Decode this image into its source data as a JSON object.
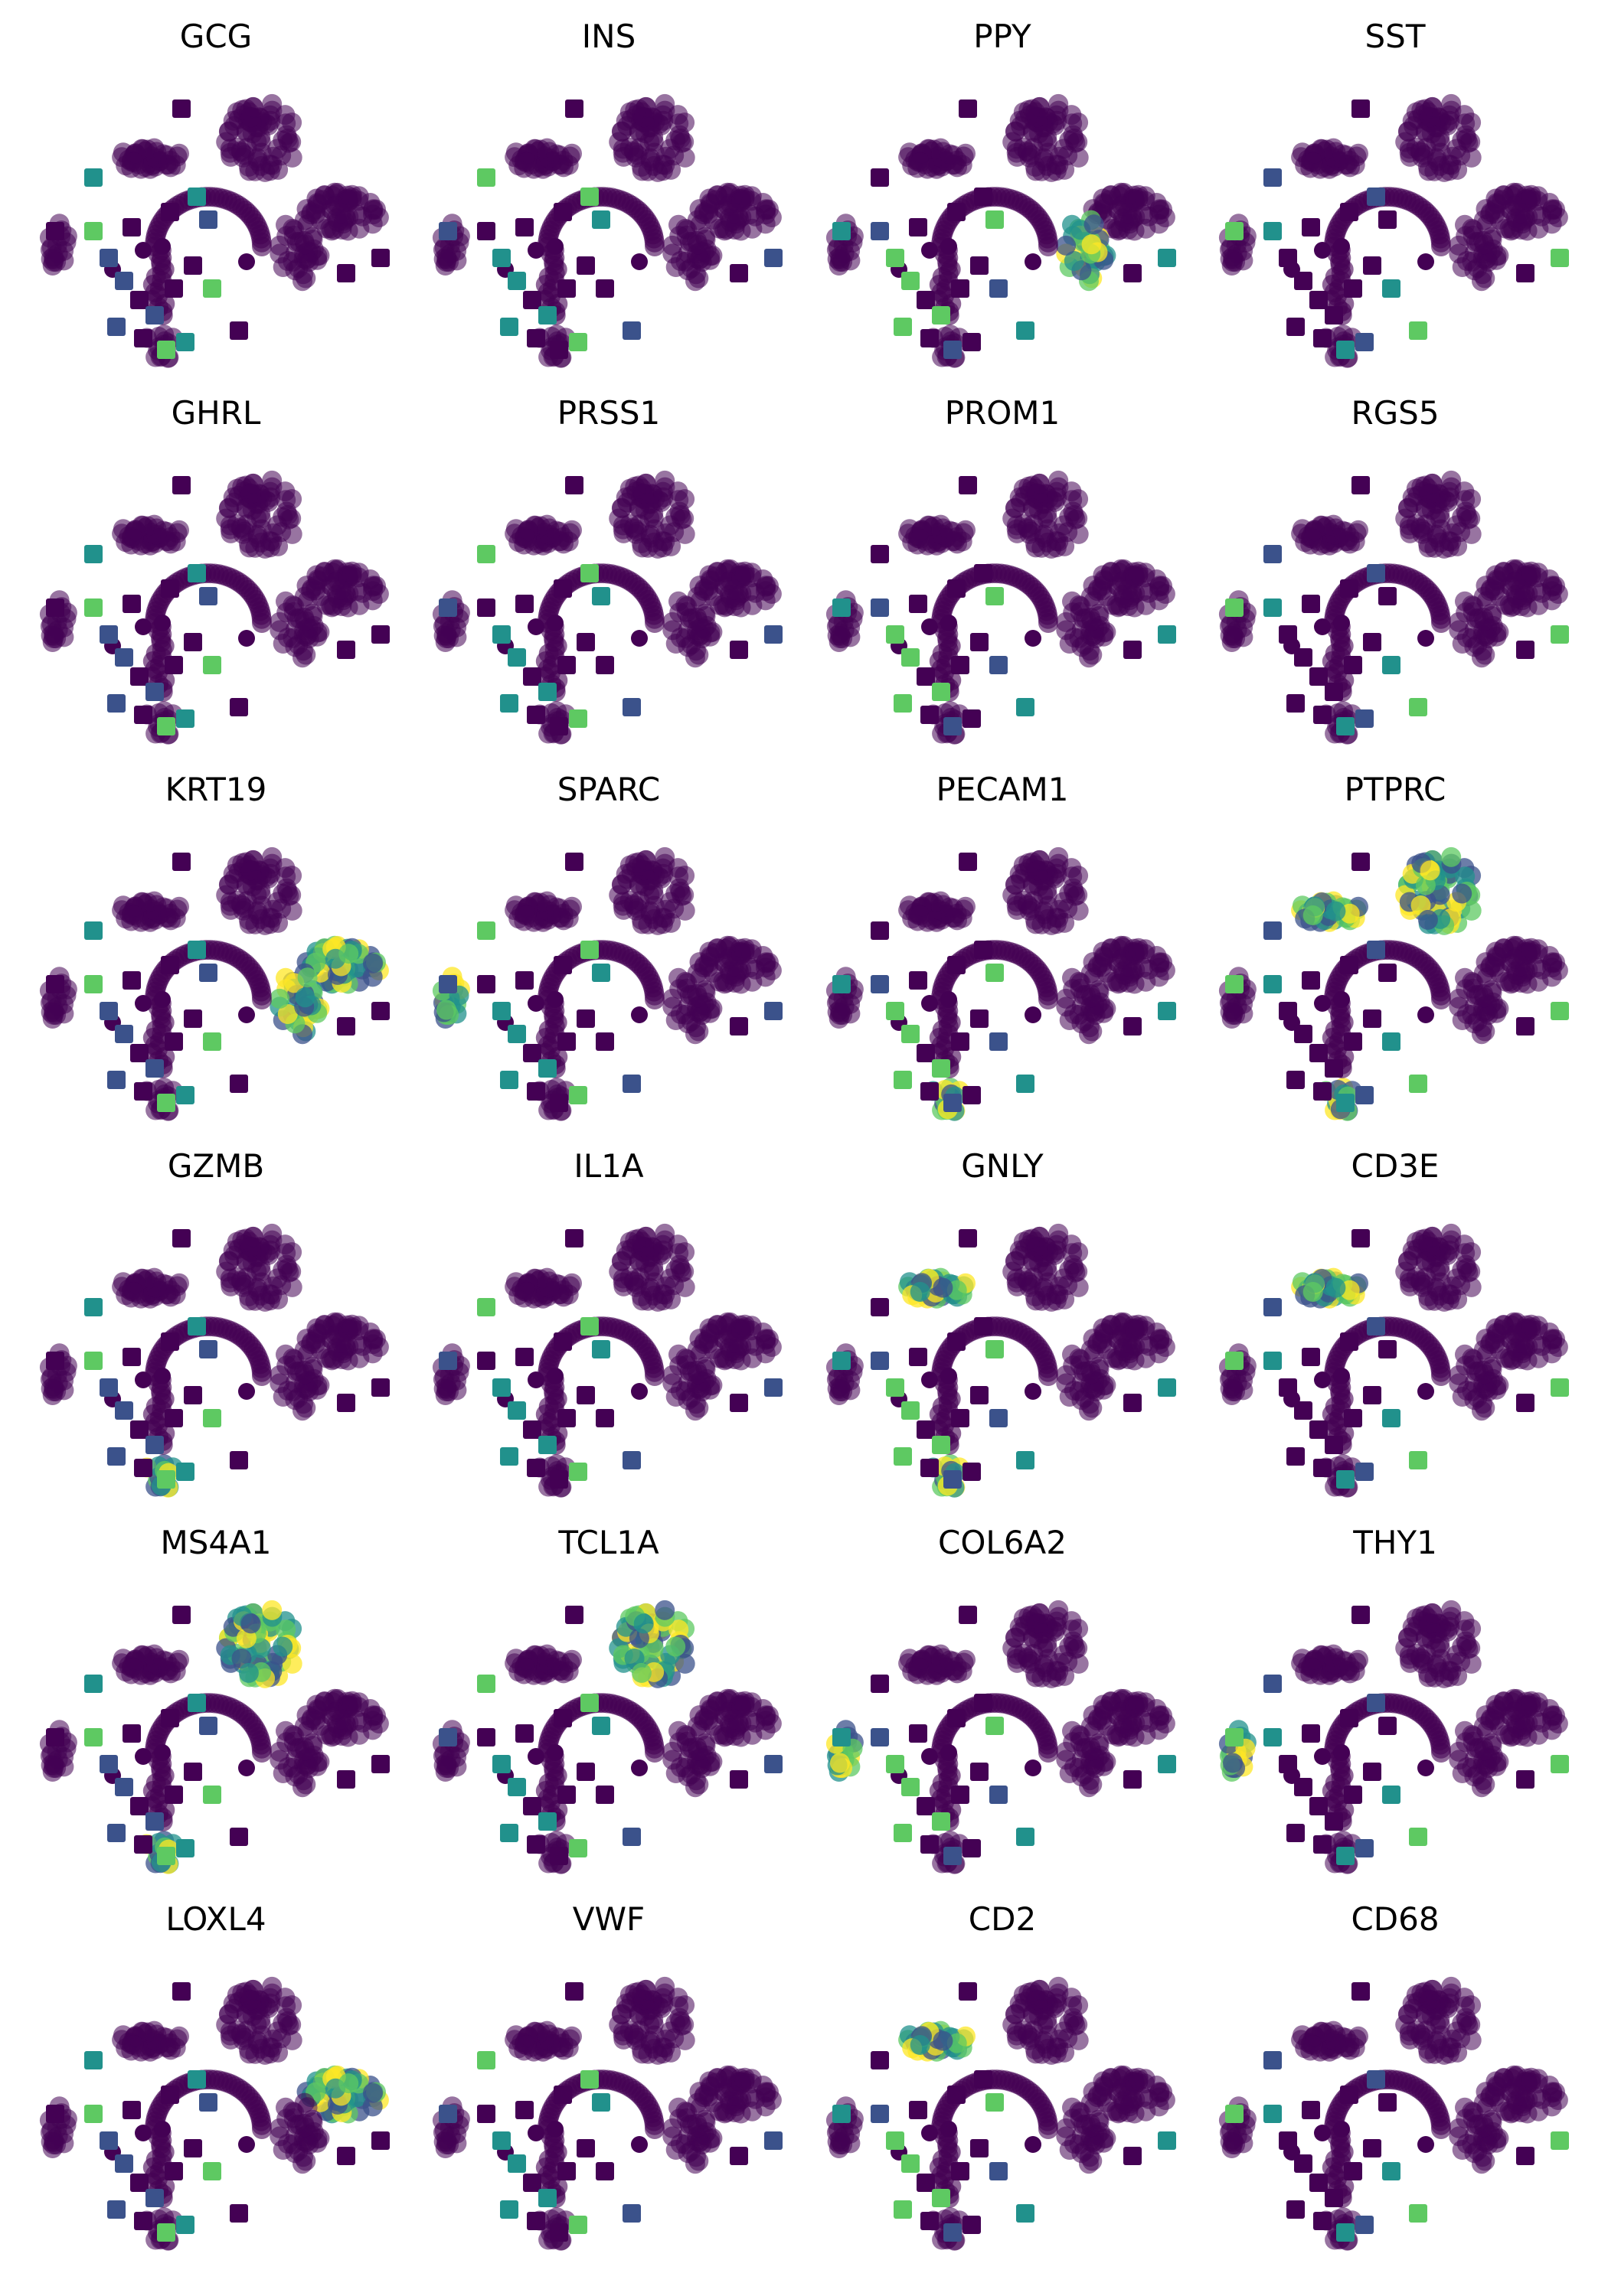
{
  "chart_data": {
    "type": "scatter",
    "layout": {
      "rows": 6,
      "cols": 4
    },
    "grid": false,
    "axes_visible": false,
    "colormap": [
      "#440154",
      "#3b528b",
      "#21918c",
      "#5ec962",
      "#fde725"
    ],
    "colormap_name": "viridis",
    "panels": [
      {
        "title": "GCG",
        "highlight": []
      },
      {
        "title": "INS",
        "highlight": []
      },
      {
        "title": "PPY",
        "highlight": [
          "ductal_band"
        ]
      },
      {
        "title": "SST",
        "highlight": []
      },
      {
        "title": "GHRL",
        "highlight": []
      },
      {
        "title": "PRSS1",
        "highlight": []
      },
      {
        "title": "PROM1",
        "highlight": []
      },
      {
        "title": "RGS5",
        "highlight": []
      },
      {
        "title": "KRT19",
        "highlight": [
          "right_blob",
          "ductal_band"
        ]
      },
      {
        "title": "SPARC",
        "highlight": [
          "left_arc"
        ]
      },
      {
        "title": "PECAM1",
        "highlight": [
          "bottom_group"
        ]
      },
      {
        "title": "PTPRC",
        "highlight": [
          "top_blob",
          "left_wing",
          "bottom_group"
        ]
      },
      {
        "title": "GZMB",
        "highlight": [
          "bottom_group"
        ]
      },
      {
        "title": "IL1A",
        "highlight": []
      },
      {
        "title": "GNLY",
        "highlight": [
          "left_wing",
          "bottom_group"
        ]
      },
      {
        "title": "CD3E",
        "highlight": [
          "left_wing"
        ]
      },
      {
        "title": "MS4A1",
        "highlight": [
          "top_blob",
          "bottom_group"
        ]
      },
      {
        "title": "TCL1A",
        "highlight": [
          "top_blob"
        ]
      },
      {
        "title": "COL6A2",
        "highlight": [
          "left_arc"
        ]
      },
      {
        "title": "THY1",
        "highlight": [
          "left_arc"
        ]
      },
      {
        "title": "LOXL4",
        "highlight": [
          "right_blob"
        ]
      },
      {
        "title": "VWF",
        "highlight": []
      },
      {
        "title": "CD2",
        "highlight": [
          "left_wing"
        ]
      },
      {
        "title": "CD68",
        "highlight": []
      }
    ]
  }
}
